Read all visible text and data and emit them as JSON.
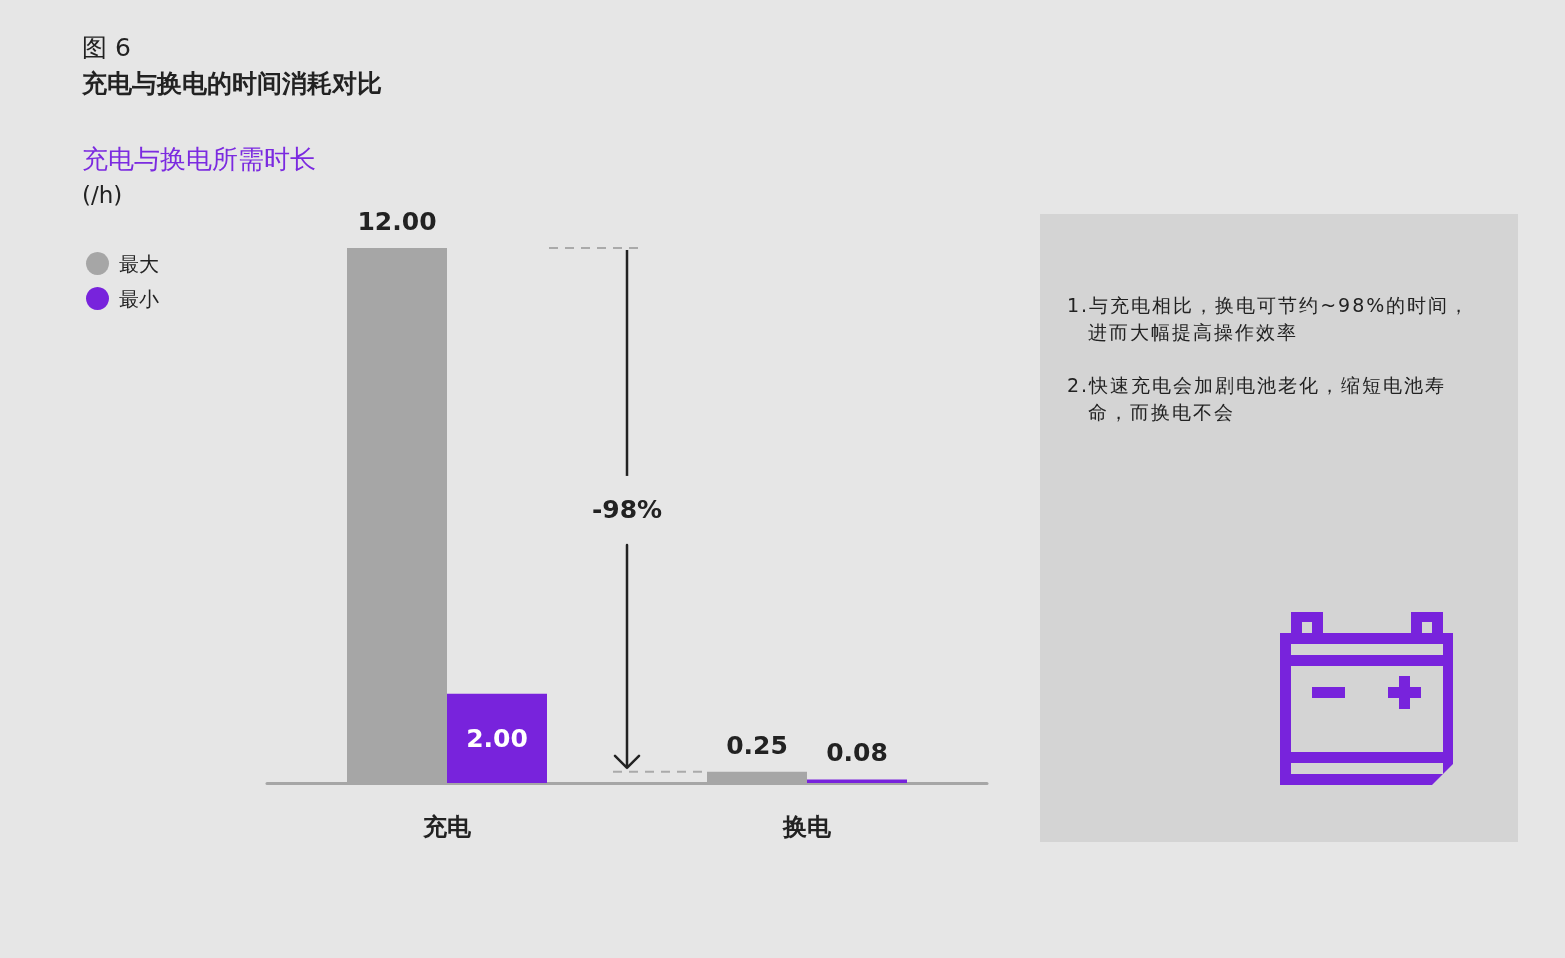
{
  "chart_data": [
    {
      "type": "bar",
      "title": "充电与换电的时间消耗对比",
      "subtitle": "充电与换电所需时长",
      "annotations": [
        "图 6",
        "(/h)",
        "-98%"
      ],
      "categories": [
        "充电",
        "换电"
      ],
      "series": [
        {
          "name": "最大",
          "color": "#a6a6a6",
          "values": [
            12,
            0.25
          ],
          "value_labels": [
            "12.00",
            "0.25"
          ]
        },
        {
          "name": "最小",
          "color": "#7823dc",
          "values": [
            2,
            0.08
          ],
          "value_labels": [
            "2.00",
            "0.08"
          ]
        }
      ],
      "legend": "top left",
      "tick_labels": "x"
    },
    {
      "type": "other",
      "annotations": [
        "1.与充电相比，换电可节约~98%的时间，进而大幅提高操作效率",
        "2.快速充电会加剧电池老化，缩短电池寿命，而换电不会"
      ]
    }
  ]
}
